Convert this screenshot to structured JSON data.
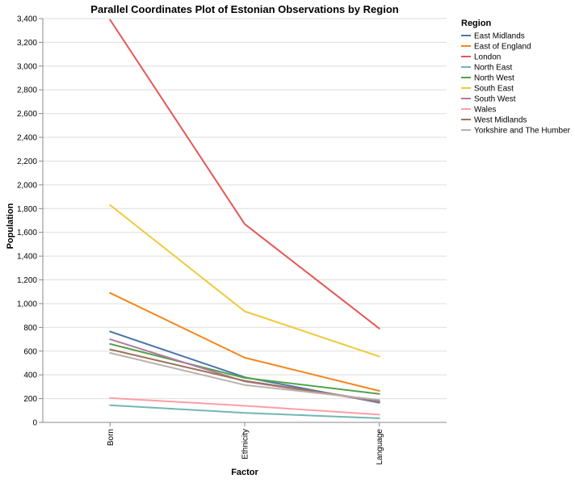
{
  "chart_data": {
    "type": "line",
    "title": "Parallel Coordinates Plot of Estonian Observations by Region",
    "xlabel": "Factor",
    "ylabel": "Population",
    "categories": [
      "Born",
      "Ethnicity",
      "Language"
    ],
    "ylim": [
      0,
      3400
    ],
    "yticks": [
      0,
      200,
      400,
      600,
      800,
      1000,
      1200,
      1400,
      1600,
      1800,
      2000,
      2200,
      2400,
      2600,
      2800,
      3000,
      3200,
      3400
    ],
    "ytick_labels": [
      "0",
      "200",
      "400",
      "600",
      "800",
      "1,000",
      "1,200",
      "1,400",
      "1,600",
      "1,800",
      "2,000",
      "2,200",
      "2,400",
      "2,600",
      "2,800",
      "3,000",
      "3,200",
      "3,400"
    ],
    "grid": true,
    "legend_title": "Region",
    "legend_position": "top-right",
    "series": [
      {
        "name": "East Midlands",
        "color": "#4c78a8",
        "values": [
          765,
          380,
          165
        ]
      },
      {
        "name": "East of England",
        "color": "#f58518",
        "values": [
          1090,
          545,
          265
        ]
      },
      {
        "name": "London",
        "color": "#e45756",
        "values": [
          3390,
          1670,
          790
        ]
      },
      {
        "name": "North East",
        "color": "#72b7b2",
        "values": [
          145,
          80,
          35
        ]
      },
      {
        "name": "North West",
        "color": "#54a24b",
        "values": [
          660,
          375,
          240
        ]
      },
      {
        "name": "South East",
        "color": "#eeca3b",
        "values": [
          1830,
          935,
          555
        ]
      },
      {
        "name": "South West",
        "color": "#b279a2",
        "values": [
          700,
          345,
          175
        ]
      },
      {
        "name": "Wales",
        "color": "#ff9da6",
        "values": [
          205,
          140,
          65
        ]
      },
      {
        "name": "West Midlands",
        "color": "#9d755d",
        "values": [
          615,
          350,
          180
        ]
      },
      {
        "name": "Yorkshire and The Humber",
        "color": "#bab0ac",
        "values": [
          585,
          315,
          190
        ]
      }
    ]
  }
}
